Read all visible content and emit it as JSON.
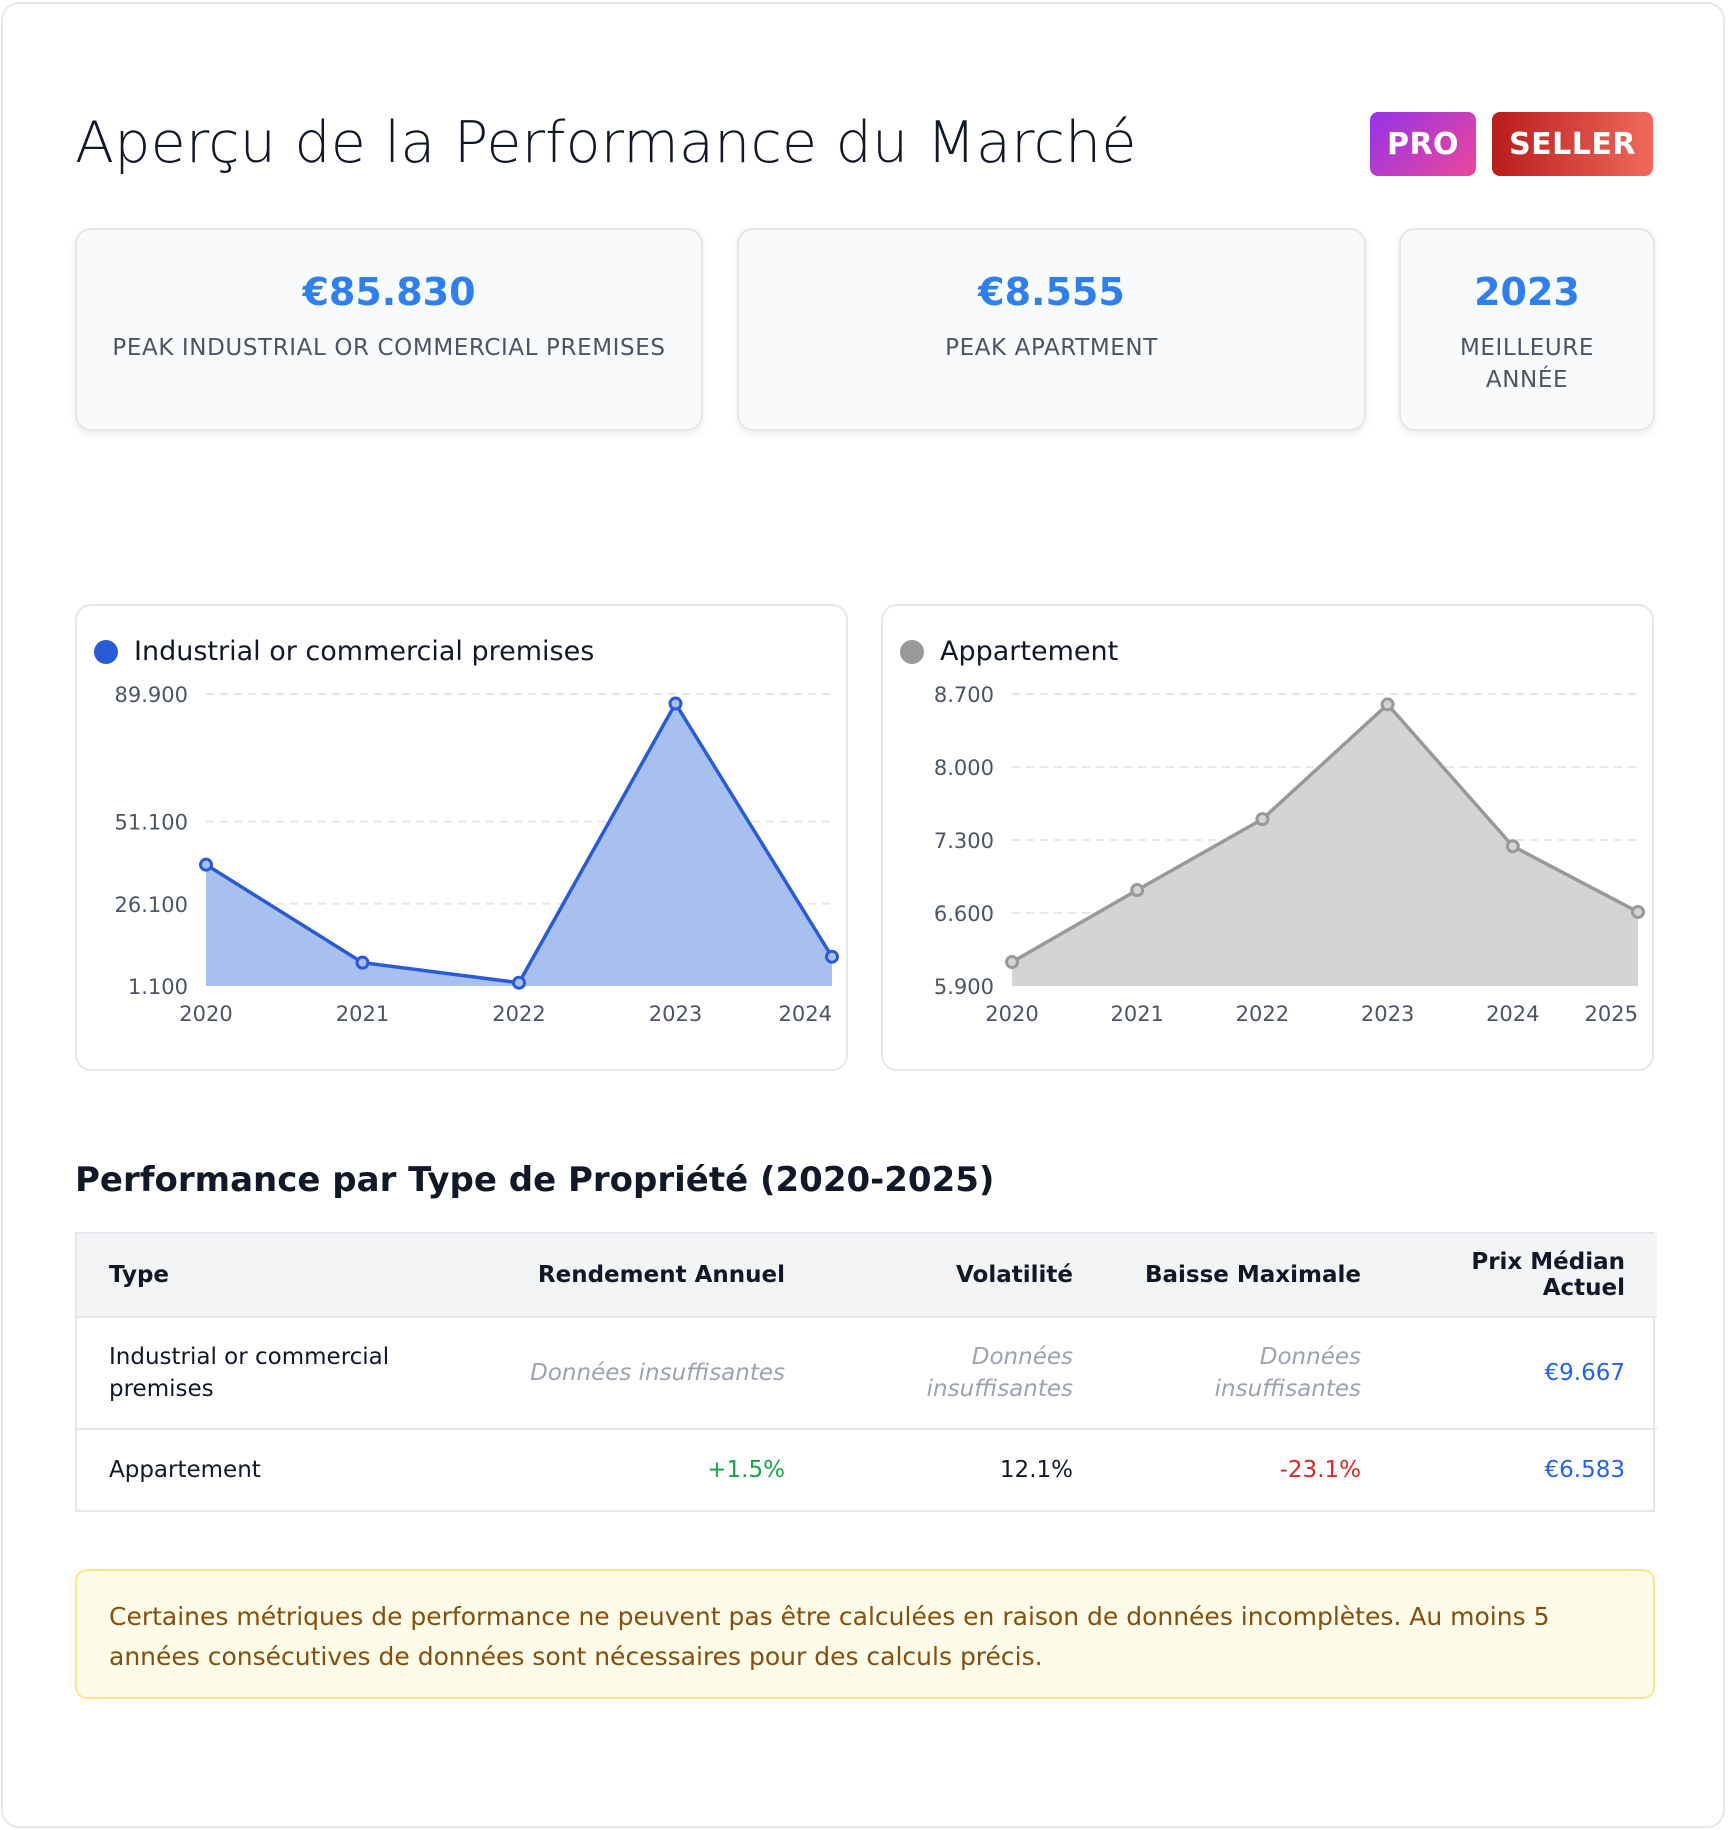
{
  "header": {
    "title": "Aperçu de la Performance du Marché",
    "badges": [
      "PRO",
      "SELLER"
    ]
  },
  "stats": [
    {
      "value": "€85.830",
      "label": "PEAK INDUSTRIAL OR COMMERCIAL PREMISES"
    },
    {
      "value": "€8.555",
      "label": "PEAK APARTMENT"
    },
    {
      "value": "2023",
      "label": "MEILLEURE ANNÉE"
    }
  ],
  "charts": {
    "industrial_legend": "Industrial or commercial premises",
    "apartment_legend": "Appartement"
  },
  "chart_data": [
    {
      "type": "area",
      "title": "",
      "series": [
        {
          "name": "Industrial or commercial premises",
          "values": [
            38000,
            8200,
            2100,
            87000,
            10000
          ]
        }
      ],
      "x": [
        "2020",
        "2021",
        "2022",
        "2023",
        "2024"
      ],
      "y_ticks": [
        "89.900",
        "51.100",
        "26.100",
        "1.100"
      ],
      "ylim": [
        1100,
        89900
      ],
      "grid": true,
      "color": "#2a5bd7",
      "fill": "#a8c0f0"
    },
    {
      "type": "area",
      "title": "",
      "series": [
        {
          "name": "Appartement",
          "values": [
            6130,
            6820,
            7500,
            8600,
            7240,
            6610
          ]
        }
      ],
      "x": [
        "2020",
        "2021",
        "2022",
        "2023",
        "2024",
        "2025"
      ],
      "y_ticks": [
        "8.700",
        "8.000",
        "7.300",
        "6.600",
        "5.900"
      ],
      "ylim": [
        5900,
        8700
      ],
      "grid": true,
      "color": "#999999",
      "fill": "#d4d4d4"
    }
  ],
  "section": {
    "title": "Performance par Type de Propriété (2020-2025)"
  },
  "table": {
    "headers": [
      "Type",
      "Rendement Annuel",
      "Volatilité",
      "Baisse Maximale",
      "Prix Médian Actuel"
    ],
    "rows": [
      [
        "Industrial or commercial premises",
        "Données insuffisantes",
        "Données insuffisantes",
        "Données insuffisantes",
        "€9.667"
      ],
      [
        "Appartement",
        "+1.5%",
        "12.1%",
        "-23.1%",
        "€6.583"
      ]
    ]
  },
  "notice": {
    "text": "Certaines métriques de performance ne peuvent pas être calculées en raison de données incomplètes. Au moins 5 années consécutives de données sont nécessaires pour des calculs précis."
  }
}
